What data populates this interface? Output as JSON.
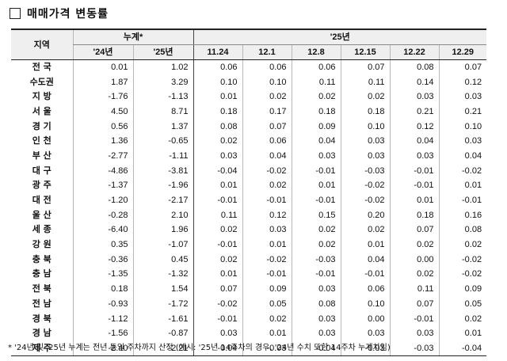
{
  "title": "매매가격 변동률",
  "table": {
    "region_header": "지역",
    "cumulative_header": "누계*",
    "weekly_group_header": "'25년",
    "sub_headers": [
      "'24년",
      "'25년",
      "11.24",
      "12.1",
      "12.8",
      "12.15",
      "12.22",
      "12.29"
    ],
    "rows": [
      {
        "region": "전 국",
        "values": [
          "0.01",
          "1.02",
          "0.06",
          "0.06",
          "0.06",
          "0.07",
          "0.08",
          "0.07"
        ]
      },
      {
        "region": "수도권",
        "values": [
          "1.87",
          "3.29",
          "0.10",
          "0.10",
          "0.11",
          "0.11",
          "0.14",
          "0.12"
        ]
      },
      {
        "region": "지 방",
        "values": [
          "-1.76",
          "-1.13",
          "0.01",
          "0.02",
          "0.02",
          "0.02",
          "0.03",
          "0.03"
        ]
      },
      {
        "region": "서 울",
        "values": [
          "4.50",
          "8.71",
          "0.18",
          "0.17",
          "0.18",
          "0.18",
          "0.21",
          "0.21"
        ]
      },
      {
        "region": "경 기",
        "values": [
          "0.56",
          "1.37",
          "0.08",
          "0.07",
          "0.09",
          "0.10",
          "0.12",
          "0.10"
        ]
      },
      {
        "region": "인 천",
        "values": [
          "1.36",
          "-0.65",
          "0.02",
          "0.06",
          "0.04",
          "0.03",
          "0.04",
          "0.03"
        ]
      },
      {
        "region": "부 산",
        "values": [
          "-2.77",
          "-1.11",
          "0.03",
          "0.04",
          "0.03",
          "0.03",
          "0.03",
          "0.04"
        ]
      },
      {
        "region": "대 구",
        "values": [
          "-4.86",
          "-3.81",
          "-0.04",
          "-0.02",
          "-0.01",
          "-0.03",
          "-0.01",
          "-0.02"
        ]
      },
      {
        "region": "광 주",
        "values": [
          "-1.37",
          "-1.96",
          "0.01",
          "0.02",
          "0.01",
          "-0.02",
          "-0.01",
          "0.01"
        ]
      },
      {
        "region": "대 전",
        "values": [
          "-1.20",
          "-2.17",
          "-0.01",
          "-0.01",
          "-0.01",
          "-0.02",
          "0.01",
          "-0.01"
        ]
      },
      {
        "region": "울 산",
        "values": [
          "-0.28",
          "2.10",
          "0.11",
          "0.12",
          "0.15",
          "0.20",
          "0.18",
          "0.16"
        ]
      },
      {
        "region": "세 종",
        "values": [
          "-6.40",
          "1.96",
          "0.02",
          "0.03",
          "0.02",
          "0.02",
          "0.07",
          "0.08"
        ]
      },
      {
        "region": "강 원",
        "values": [
          "0.35",
          "-1.07",
          "-0.01",
          "0.01",
          "0.02",
          "0.01",
          "0.02",
          "0.02"
        ]
      },
      {
        "region": "충 북",
        "values": [
          "-0.36",
          "0.45",
          "0.02",
          "-0.02",
          "-0.03",
          "0.04",
          "0.00",
          "-0.02"
        ]
      },
      {
        "region": "충 남",
        "values": [
          "-1.35",
          "-1.32",
          "0.01",
          "-0.01",
          "-0.01",
          "-0.01",
          "0.02",
          "-0.02"
        ]
      },
      {
        "region": "전 북",
        "values": [
          "0.18",
          "1.54",
          "0.07",
          "0.09",
          "0.03",
          "0.06",
          "0.11",
          "0.09"
        ]
      },
      {
        "region": "전 남",
        "values": [
          "-0.93",
          "-1.72",
          "-0.02",
          "0.05",
          "0.08",
          "0.10",
          "0.07",
          "0.05"
        ]
      },
      {
        "region": "경 북",
        "values": [
          "-1.12",
          "-1.61",
          "-0.01",
          "0.02",
          "0.03",
          "0.00",
          "-0.01",
          "0.02"
        ]
      },
      {
        "region": "경 남",
        "values": [
          "-1.56",
          "-0.87",
          "0.03",
          "0.01",
          "0.03",
          "0.03",
          "0.03",
          "0.01"
        ]
      },
      {
        "region": "제 주",
        "values": [
          "-2.40",
          "-2.21",
          "-0.04",
          "-0.03",
          "-0.04",
          "-0.03",
          "-0.03",
          "-0.04"
        ]
      }
    ]
  },
  "footnote": "* '24년 및 '25년 누계는 전년 동일 주차까지 산정 (예시: '25년 14주차의 경우, '24년 수치 또한 14주차 누계치임)"
}
